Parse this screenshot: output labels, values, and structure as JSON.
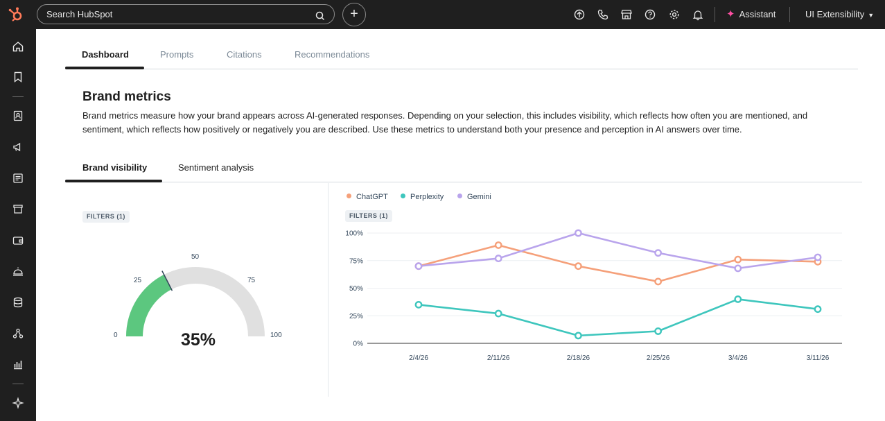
{
  "topbar": {
    "search_placeholder": "Search HubSpot",
    "plus_label": "+",
    "assistant_label": "Assistant",
    "account_label": "UI Extensibility"
  },
  "tabs": [
    {
      "label": "Dashboard",
      "active": true
    },
    {
      "label": "Prompts",
      "active": false
    },
    {
      "label": "Citations",
      "active": false
    },
    {
      "label": "Recommendations",
      "active": false
    }
  ],
  "section": {
    "title": "Brand metrics",
    "description": "Brand metrics measure how your brand appears across AI-generated responses. Depending on your selection, this includes visibility, which reflects how often you are mentioned, and sentiment, which reflects how positively or negatively you are described. Use these metrics to understand both your presence and perception in AI answers over time."
  },
  "subtabs": [
    {
      "label": "Brand visibility",
      "active": true
    },
    {
      "label": "Sentiment analysis",
      "active": false
    }
  ],
  "gauge": {
    "filters_label": "FILTERS (1)",
    "value": 35,
    "value_label": "35%",
    "ticks": [
      "0",
      "25",
      "50",
      "75",
      "100"
    ],
    "min": 0,
    "max": 100,
    "fill_color": "#5cc77f",
    "track_color": "#e0e0e0"
  },
  "chart_data": {
    "type": "line",
    "filters_label": "FILTERS (1)",
    "categories": [
      "2/4/26",
      "2/11/26",
      "2/18/26",
      "2/25/26",
      "3/4/26",
      "3/11/26"
    ],
    "y_ticks": [
      "0%",
      "25%",
      "50%",
      "75%",
      "100%"
    ],
    "ylim": [
      0,
      100
    ],
    "grid": true,
    "legend_position": "top-left",
    "series": [
      {
        "name": "ChatGPT",
        "color": "#f5a07a",
        "values": [
          70,
          89,
          70,
          56,
          76,
          74
        ]
      },
      {
        "name": "Perplexity",
        "color": "#3ec6bd",
        "values": [
          35,
          27,
          7,
          11,
          40,
          31
        ]
      },
      {
        "name": "Gemini",
        "color": "#b9a4ec",
        "values": [
          70,
          77,
          100,
          82,
          68,
          78
        ]
      }
    ]
  },
  "icons": {
    "logo": "hubspot-logo-icon",
    "search": "search-icon",
    "upgrade": "upgrade-icon",
    "phone": "phone-icon",
    "marketplace": "marketplace-icon",
    "help": "help-icon",
    "settings": "gear-icon",
    "notifications": "bell-icon",
    "assistant": "sparkle-icon",
    "account_caret": "caret-down-icon"
  },
  "colors": {
    "brand_orange": "#ff7a59",
    "dark_bg": "#1f1f1f"
  }
}
